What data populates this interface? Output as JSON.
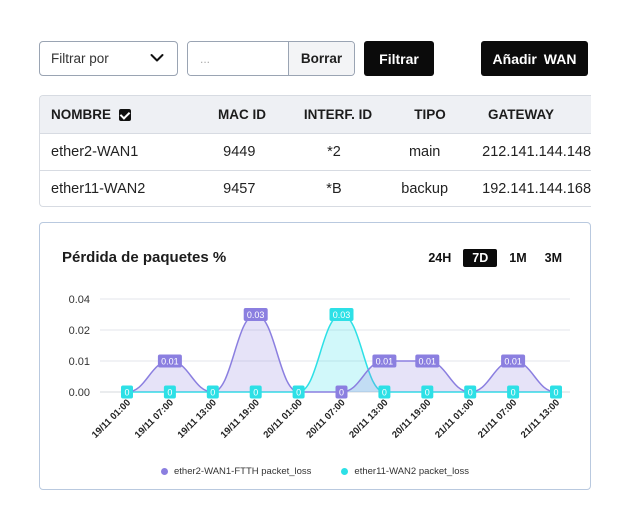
{
  "toolbar": {
    "filter_select": "Filtrar por",
    "search_placeholder": "...",
    "clear_label": "Borrar",
    "filter_label": "Filtrar",
    "add_wan_label": "Añadir WAN"
  },
  "table": {
    "headers": [
      "NOMBRE",
      "MAC ID",
      "INTERF. ID",
      "TIPO",
      "GATEWAY"
    ],
    "rows": [
      [
        "ether2-WAN1",
        "9449",
        "*2",
        "main",
        "212.141.144.148"
      ],
      [
        "ether11-WAN2",
        "9457",
        "*B",
        "backup",
        "192.141.144.168"
      ]
    ]
  },
  "chart": {
    "title": "Pérdida de paquetes %",
    "ranges": [
      "24H",
      "7D",
      "1M",
      "3M"
    ],
    "active_range": "7D"
  },
  "colors": {
    "series1": "#8b7fe0",
    "series2": "#2de0e6",
    "dark": "#0b0b0b"
  },
  "chart_data": {
    "type": "area",
    "title": "Pérdida de paquetes %",
    "x": [
      "19/11 01:00",
      "19/11 07:00",
      "19/11 13:00",
      "19/11 19:00",
      "20/11 01:00",
      "20/11 07:00",
      "20/11 13:00",
      "20/11 19:00",
      "21/11 01:00",
      "21/11 07:00",
      "21/11 13:00"
    ],
    "yticks": [
      "0.04",
      "0.02",
      "0.01",
      "0.00"
    ],
    "ylim": [
      0,
      0.04
    ],
    "series": [
      {
        "name": "ether2-WAN1-FTTH packet_loss",
        "values": [
          0,
          0.01,
          0,
          0.03,
          0,
          0,
          0.01,
          0.01,
          0,
          0.01,
          0
        ],
        "labels": [
          "0",
          "0.01",
          "0",
          "0.03",
          "0",
          "0",
          "0.01",
          "0.01",
          "0",
          "0.01",
          "0"
        ]
      },
      {
        "name": "ether11-WAN2 packet_loss",
        "values": [
          0,
          0,
          0,
          0,
          0,
          0.03,
          0,
          0,
          0,
          0,
          0
        ],
        "labels": [
          "0",
          "0",
          "0",
          "0",
          "0",
          "0.03",
          "0",
          "0",
          "0",
          "0",
          "0"
        ]
      }
    ],
    "grid": true,
    "legend": "bottom"
  }
}
